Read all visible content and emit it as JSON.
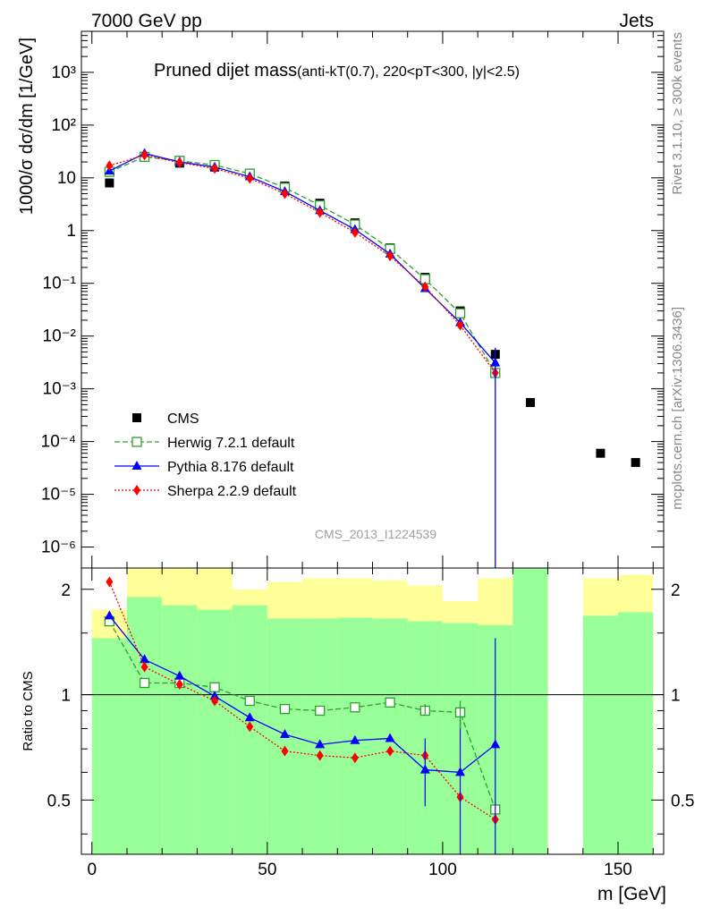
{
  "header": {
    "left": "7000 GeV pp",
    "right": "Jets"
  },
  "side_labels": {
    "rivet": "Rivet 3.1.10, ≥ 300k events",
    "source": "mcplots.cern.ch [arXiv:1306.3436]"
  },
  "watermark": "CMS_2013_I1224539",
  "colors": {
    "cms": "#000000",
    "herwig": "#2ca02c",
    "pythia": "#0000ff",
    "sherpa": "#ff0000",
    "band_inner": "#99ff99",
    "band_outer": "#ffff99"
  },
  "chart_data": [
    {
      "type": "scatter",
      "title": "Pruned dijet mass",
      "title_suffix": "(anti-kT(0.7), 220<pT<300, |y|<2.5)",
      "ylabel": "1000/σ dσ/dm [1/GeV]",
      "xlabel": "",
      "yscale": "log",
      "ylim": [
        4e-07,
        6000
      ],
      "xlim": [
        -3,
        163
      ],
      "yticks": [
        "10⁻⁶",
        "10⁻⁵",
        "10⁻⁴",
        "10⁻³",
        "10⁻²",
        "10⁻¹",
        "1",
        "10",
        "10²",
        "10³"
      ],
      "legend_position": "middle-left",
      "series": [
        {
          "name": "CMS",
          "style": "square",
          "x": [
            5,
            15,
            25,
            35,
            45,
            55,
            65,
            75,
            85,
            95,
            105,
            115,
            125,
            145,
            155
          ],
          "values": [
            8,
            25,
            19,
            16,
            12,
            7,
            3.3,
            1.4,
            0.47,
            0.13,
            0.03,
            0.0045,
            0.00055,
            6e-05,
            4e-05
          ]
        },
        {
          "name": "Herwig 7.2.1 default",
          "style": "open-square-dashed",
          "x": [
            5,
            15,
            25,
            35,
            45,
            55,
            65,
            75,
            85,
            95,
            105,
            115
          ],
          "values": [
            13,
            25,
            21,
            17.5,
            12,
            6.5,
            3.0,
            1.3,
            0.45,
            0.12,
            0.027,
            0.002
          ]
        },
        {
          "name": "Pythia 8.176 default",
          "style": "triangle-solid",
          "x": [
            5,
            15,
            25,
            35,
            45,
            55,
            65,
            75,
            85,
            95,
            105,
            115
          ],
          "values": [
            13.5,
            29,
            20,
            16,
            10.5,
            5.5,
            2.4,
            1.05,
            0.36,
            0.08,
            0.018,
            0.0031
          ]
        },
        {
          "name": "Sherpa 2.2.9 default",
          "style": "diamond-dotted",
          "x": [
            5,
            15,
            25,
            35,
            45,
            55,
            65,
            75,
            85,
            95,
            105,
            115
          ],
          "values": [
            17,
            27,
            19.5,
            15,
            9.8,
            5,
            2.2,
            0.92,
            0.33,
            0.086,
            0.016,
            0.002
          ]
        }
      ]
    },
    {
      "type": "scatter",
      "title": "",
      "ylabel": "Ratio to CMS",
      "xlabel": "m [GeV]",
      "ylim": [
        0.35,
        2.3
      ],
      "xlim": [
        -3,
        163
      ],
      "yticks": [
        0.5,
        1,
        2
      ],
      "xticks": [
        0,
        50,
        100,
        150
      ],
      "reference_line": 1,
      "bands": {
        "edges": [
          0,
          10,
          20,
          30,
          40,
          50,
          60,
          70,
          80,
          90,
          100,
          110,
          120,
          130,
          140,
          150,
          160
        ],
        "inner_low": [
          0.35,
          0.35,
          0.35,
          0.35,
          0.35,
          0.35,
          0.35,
          0.35,
          0.35,
          0.35,
          0.35,
          0.35,
          0.35,
          null,
          0.35,
          0.35
        ],
        "inner_high": [
          1.45,
          1.9,
          1.8,
          1.75,
          1.8,
          1.65,
          1.65,
          1.66,
          1.65,
          1.62,
          1.6,
          1.58,
          2.3,
          null,
          1.68,
          1.72
        ],
        "outer_low": [
          0.35,
          0.35,
          0.35,
          0.35,
          0.47,
          0.45,
          0.45,
          0.52,
          0.6,
          0.63,
          0.65,
          0.7,
          0.35,
          null,
          0.35,
          0.35
        ],
        "outer_high": [
          1.75,
          2.3,
          2.3,
          2.3,
          2.0,
          2.1,
          2.15,
          2.15,
          2.12,
          2.05,
          1.85,
          2.15,
          2.3,
          null,
          2.15,
          2.2
        ]
      },
      "series": [
        {
          "name": "Herwig 7.2.1 default",
          "x": [
            5,
            15,
            25,
            35,
            45,
            55,
            65,
            75,
            85,
            95,
            105,
            115
          ],
          "values": [
            1.62,
            1.08,
            1.08,
            1.05,
            0.96,
            0.91,
            0.9,
            0.92,
            0.95,
            0.9,
            0.89,
            0.47
          ]
        },
        {
          "name": "Pythia 8.176 default",
          "x": [
            5,
            15,
            25,
            35,
            45,
            55,
            65,
            75,
            85,
            95,
            105,
            115
          ],
          "values": [
            1.68,
            1.26,
            1.13,
            0.99,
            0.86,
            0.77,
            0.72,
            0.74,
            0.75,
            0.61,
            0.6,
            0.72
          ]
        },
        {
          "name": "Sherpa 2.2.9 default",
          "x": [
            5,
            15,
            25,
            35,
            45,
            55,
            65,
            75,
            85,
            95,
            105,
            115
          ],
          "values": [
            2.1,
            1.2,
            1.07,
            0.96,
            0.81,
            0.69,
            0.67,
            0.66,
            0.69,
            0.67,
            0.51,
            0.44
          ]
        }
      ]
    }
  ]
}
